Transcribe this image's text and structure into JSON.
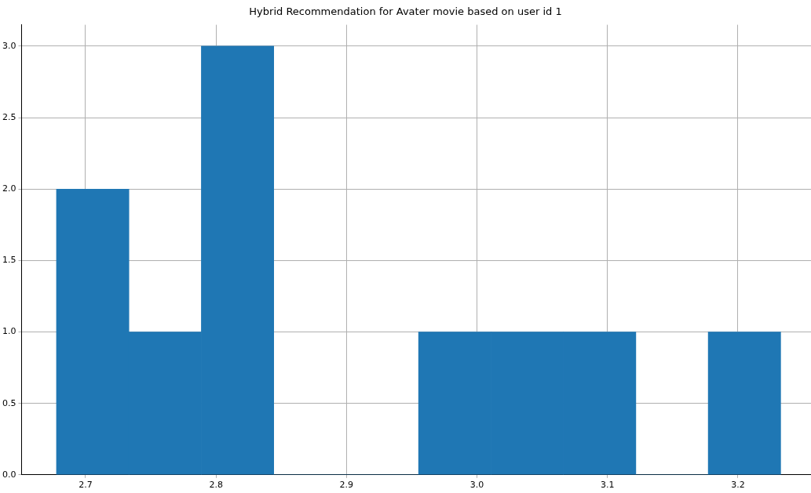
{
  "chart_data": {
    "type": "histogram",
    "title": "Hybrid Recommendation for Avater movie based on user id 1",
    "bins": [
      2.678,
      2.733,
      2.789,
      2.844,
      2.9,
      2.955,
      3.011,
      3.066,
      3.122,
      3.177,
      3.233
    ],
    "values": [
      2,
      1,
      3,
      0,
      0,
      1,
      1,
      1,
      0,
      1
    ],
    "color": "#1f77b4",
    "xlim": [
      2.651,
      3.256
    ],
    "xticks": [
      {
        "value": 2.7,
        "label": "2.7"
      },
      {
        "value": 2.8,
        "label": "2.8"
      },
      {
        "value": 2.9,
        "label": "2.9"
      },
      {
        "value": 3.0,
        "label": "3.0"
      },
      {
        "value": 3.1,
        "label": "3.1"
      },
      {
        "value": 3.2,
        "label": "3.2"
      }
    ],
    "ylim": [
      0,
      3.15
    ],
    "yticks": [
      {
        "value": 0,
        "label": "0.0"
      },
      {
        "value": 0.5,
        "label": "0.5"
      },
      {
        "value": 1,
        "label": "1.0"
      },
      {
        "value": 1.5,
        "label": "1.5"
      },
      {
        "value": 2,
        "label": "2.0"
      },
      {
        "value": 2.5,
        "label": "2.5"
      },
      {
        "value": 3,
        "label": "3.0"
      }
    ],
    "grid": true,
    "legend": false
  }
}
